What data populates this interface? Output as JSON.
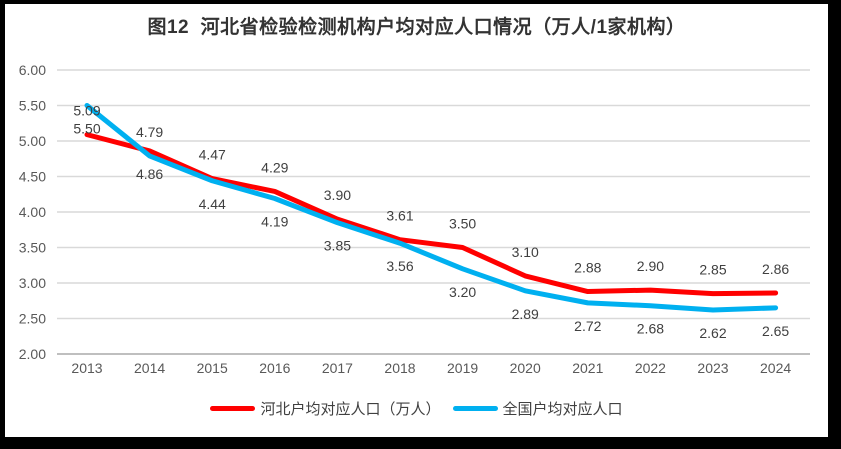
{
  "figure": {
    "title": "图12  河北省检验检测机构户均对应人口情况（万人/1家机构）"
  },
  "chart_data": {
    "type": "line",
    "title": "图12  河北省检验检测机构户均对应人口情况（万人/1家机构）",
    "categories": [
      "2013",
      "2014",
      "2015",
      "2016",
      "2017",
      "2018",
      "2019",
      "2020",
      "2021",
      "2022",
      "2023",
      "2024"
    ],
    "series": [
      {
        "name": "河北户均对应人口（万人）",
        "color": "#FF0000",
        "values": [
          5.09,
          4.86,
          4.47,
          4.29,
          3.9,
          3.61,
          3.5,
          3.1,
          2.88,
          2.9,
          2.85,
          2.86
        ],
        "label_side": [
          "above",
          "below",
          "above",
          "above",
          "above",
          "above",
          "above",
          "above",
          "above",
          "above",
          "above",
          "above"
        ]
      },
      {
        "name": "全国户均对应人口",
        "color": "#00B0F0",
        "values": [
          5.5,
          4.79,
          4.44,
          4.19,
          3.85,
          3.56,
          3.2,
          2.89,
          2.72,
          2.68,
          2.62,
          2.65
        ],
        "label_side": [
          "below",
          "above",
          "below",
          "below",
          "below",
          "below",
          "below",
          "below",
          "below",
          "below",
          "below",
          "below"
        ]
      }
    ],
    "ylim": [
      2.0,
      6.0
    ],
    "ytick_step": 0.5,
    "yticks": [
      "6.00",
      "5.50",
      "5.00",
      "4.50",
      "4.00",
      "3.50",
      "3.00",
      "2.50",
      "2.00"
    ],
    "labels_format": "0.00",
    "grid": true,
    "legend_position": "bottom",
    "colors": {
      "gridline": "#D9D9D9",
      "axis_line": "#BFBFBF",
      "tick_label": "#595959",
      "data_label": "#404040",
      "title": "#333333"
    }
  }
}
